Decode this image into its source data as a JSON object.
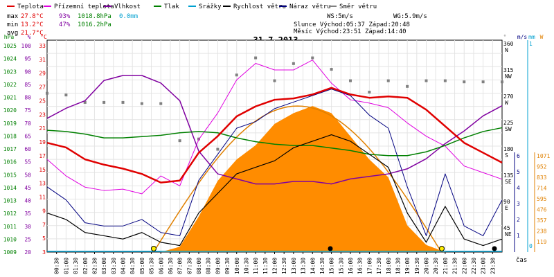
{
  "chart_data": {
    "type": "line",
    "title": "31.7.2013",
    "legend": [
      {
        "name": "Teplota",
        "color": "#e00000"
      },
      {
        "name": "Přízemní teplota",
        "color": "#e000e0"
      },
      {
        "name": "Vlhkost",
        "color": "#8000a0"
      },
      {
        "name": "Tlak",
        "color": "#008000"
      },
      {
        "name": "Srážky",
        "color": "#00a0d0"
      },
      {
        "name": "Rychlost větru",
        "color": "#000000"
      },
      {
        "name": "Náraz větru",
        "color": "#000080"
      },
      {
        "name": "Směr větru",
        "color": "#808080"
      }
    ],
    "stats": {
      "max": {
        "label": "max",
        "temp": "27.8°C",
        "hum": "93%",
        "press": "1018.8hPa",
        "rain": "0.0mm"
      },
      "min": {
        "label": "min",
        "temp": "13.2°C",
        "hum": "47%",
        "press": "1016.2hPa"
      },
      "avg": {
        "label": "avg",
        "temp": "21.7°C"
      }
    },
    "info": {
      "ws": "WS:5m/s",
      "wg": "WG:5.9m/s",
      "sun": "Slunce Východ:05:37  Západ:20:48",
      "moon": "Měsíc  Východ:23:51  Západ:14:40"
    },
    "axes": {
      "hpa": {
        "unit": "hPa",
        "ticks": [
          "1025",
          "1024",
          "1023",
          "1022",
          "1021",
          "1020",
          "1019",
          "1018",
          "1017",
          "1016",
          "1015",
          "1014",
          "1013",
          "1012",
          "1011",
          "1010",
          "1009"
        ]
      },
      "pct": {
        "unit": "%",
        "ticks": [
          "100",
          "95",
          "90",
          "85",
          "80",
          "75",
          "70",
          "65",
          "60",
          "55",
          "50",
          "45",
          "40",
          "35",
          "30",
          "25",
          "20"
        ]
      },
      "celsius": {
        "unit": "°C",
        "ticks": [
          "33",
          "31",
          "29",
          "27",
          "25",
          "23",
          "21",
          "19",
          "17",
          "15",
          "13",
          "11",
          "9",
          "7",
          "5",
          "3"
        ]
      },
      "deg": {
        "unit": "°",
        "ticks": [
          "360",
          "315",
          "270",
          "225",
          "180",
          "135",
          "90",
          "45"
        ],
        "dirs": [
          "N",
          "NW",
          "W",
          "SW",
          "S",
          "SE",
          "E",
          "NE"
        ]
      },
      "ms": {
        "unit": "m/s",
        "ticks": [
          "6",
          "5",
          "4",
          "3",
          "2",
          "1"
        ]
      },
      "mm": {
        "unit": "mm",
        "ticks": [
          "1",
          "0"
        ]
      },
      "wm2": {
        "unit": "W",
        "ticks": [
          "1071",
          "952",
          "833",
          "714",
          "595",
          "476",
          "357",
          "238",
          "119"
        ]
      },
      "time": {
        "label": "čas",
        "ticks": [
          "00:30",
          "01:00",
          "01:30",
          "02:00",
          "02:30",
          "03:00",
          "03:30",
          "04:00",
          "04:30",
          "05:00",
          "05:30",
          "06:00",
          "06:30",
          "07:00",
          "07:30",
          "08:00",
          "08:30",
          "09:00",
          "09:30",
          "10:00",
          "10:30",
          "11:00",
          "11:30",
          "12:00",
          "12:30",
          "13:00",
          "13:30",
          "14:00",
          "14:30",
          "15:00",
          "15:30",
          "16:00",
          "16:30",
          "17:00",
          "17:30",
          "18:00",
          "18:30",
          "19:00",
          "19:30",
          "20:00",
          "20:30",
          "21:00",
          "21:30",
          "22:00",
          "22:30",
          "23:00",
          "23:30"
        ]
      }
    },
    "series": {
      "hours": [
        0,
        1,
        2,
        3,
        4,
        5,
        6,
        7,
        8,
        9,
        10,
        11,
        12,
        13,
        14,
        15,
        16,
        17,
        18,
        19,
        20,
        21,
        22,
        23,
        24
      ],
      "temperature_c": [
        19.5,
        18.8,
        17.0,
        16.2,
        15.6,
        14.8,
        13.5,
        13.8,
        18.0,
        20.5,
        23.5,
        25.0,
        26.0,
        26.2,
        26.8,
        27.8,
        26.8,
        26.3,
        26.5,
        26.3,
        24.5,
        22.0,
        19.5,
        18.0,
        16.5
      ],
      "ground_temperature_c": [
        17.0,
        14.5,
        12.8,
        12.3,
        12.5,
        11.8,
        14.5,
        13.0,
        20.0,
        24.0,
        29.0,
        31.5,
        30.5,
        30.5,
        32.0,
        28.5,
        26.0,
        25.5,
        24.8,
        22.5,
        20.5,
        19.0,
        16.0,
        15.0,
        14.0
      ],
      "humidity_pct": [
        73,
        77,
        80,
        88,
        90,
        90,
        87,
        80,
        60,
        51,
        49,
        47,
        47,
        48,
        48,
        47,
        49,
        50,
        51,
        53,
        57,
        63,
        68,
        74,
        78
      ],
      "pressure_hpa": [
        1018.6,
        1018.5,
        1018.3,
        1018.0,
        1018.0,
        1018.1,
        1018.2,
        1018.4,
        1018.5,
        1018.4,
        1018.0,
        1017.7,
        1017.5,
        1017.4,
        1017.4,
        1017.2,
        1017.0,
        1016.7,
        1016.6,
        1016.6,
        1016.9,
        1017.4,
        1018.0,
        1018.5,
        1018.8
      ],
      "solar_w": [
        0,
        0,
        0,
        0,
        0,
        0,
        0,
        30,
        200,
        400,
        520,
        600,
        720,
        780,
        820,
        780,
        650,
        520,
        420,
        150,
        40,
        0,
        0,
        0,
        0
      ],
      "wind_speed_ms": [
        1.2,
        1.0,
        0.6,
        0.5,
        0.4,
        0.6,
        0.3,
        0.2,
        1.2,
        1.8,
        2.4,
        2.6,
        2.8,
        3.2,
        3.4,
        3.6,
        3.4,
        3.0,
        2.6,
        1.2,
        0.3,
        1.4,
        0.4,
        0.2,
        0.4
      ],
      "wind_gust_ms": [
        2.0,
        1.6,
        0.9,
        0.8,
        0.8,
        1.0,
        0.6,
        0.5,
        2.2,
        3.0,
        3.8,
        4.0,
        4.4,
        4.6,
        4.8,
        5.0,
        4.8,
        4.2,
        3.8,
        2.0,
        0.5,
        2.4,
        0.8,
        0.5,
        1.6
      ],
      "wind_direction_deg": [
        278,
        275,
        262,
        262,
        262,
        260,
        260,
        195,
        198,
        180,
        310,
        340,
        300,
        330,
        340,
        320,
        300,
        280,
        300,
        290,
        300,
        300,
        298,
        298,
        298
      ],
      "rain_mm": 0.0
    },
    "theoretical_solar_peak_w": 820,
    "ylim": {
      "celsius": [
        3,
        35
      ],
      "hpa": [
        1009,
        1025.7
      ],
      "pct": [
        20,
        104
      ],
      "deg": [
        0,
        371
      ],
      "ms": [
        0,
        6.5
      ],
      "wm2": [
        0,
        1190
      ]
    }
  }
}
